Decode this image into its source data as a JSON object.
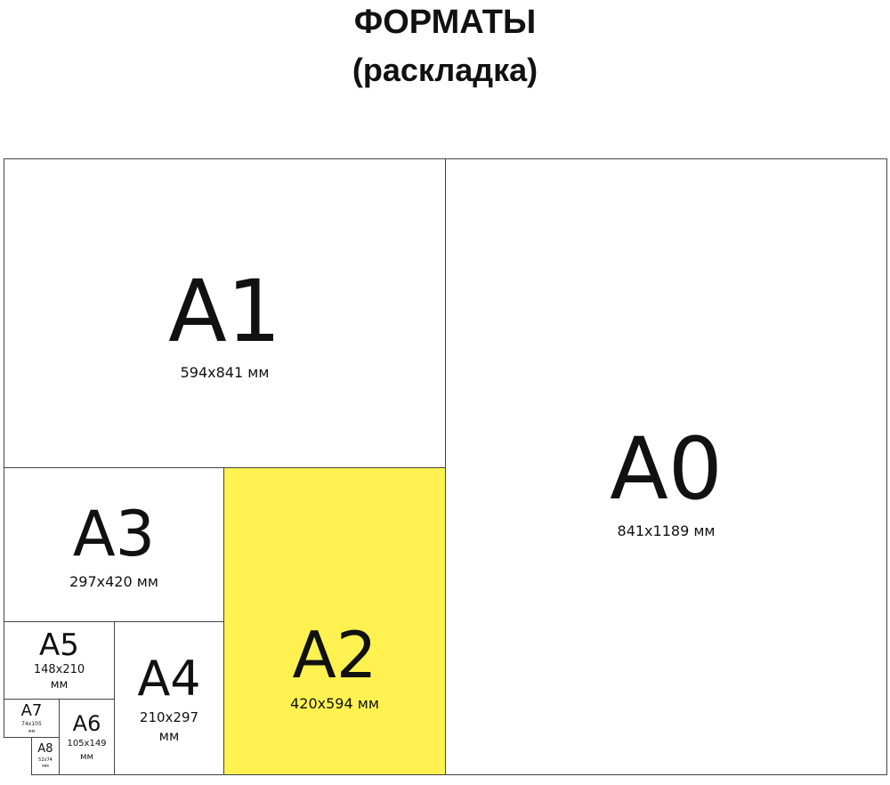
{
  "title": {
    "line1": "ФОРМАТЫ",
    "line2": "(раскладка)"
  },
  "highlight_color": "#fff250",
  "formats": {
    "a0": {
      "name": "A0",
      "size": "841x1189 мм"
    },
    "a1": {
      "name": "A1",
      "size": "594x841 мм"
    },
    "a2": {
      "name": "A2",
      "size": "420x594 мм"
    },
    "a3": {
      "name": "A3",
      "size": "297x420 мм"
    },
    "a4": {
      "name": "A4",
      "size": "210x297",
      "unit": "мм"
    },
    "a5": {
      "name": "A5",
      "size": "148x210",
      "unit": "мм"
    },
    "a6": {
      "name": "A6",
      "size": "105x149",
      "unit": "мм"
    },
    "a7": {
      "name": "A7",
      "size": "74x105",
      "unit": "мм"
    },
    "a8": {
      "name": "A8",
      "size": "52x74",
      "unit": "мм"
    }
  }
}
